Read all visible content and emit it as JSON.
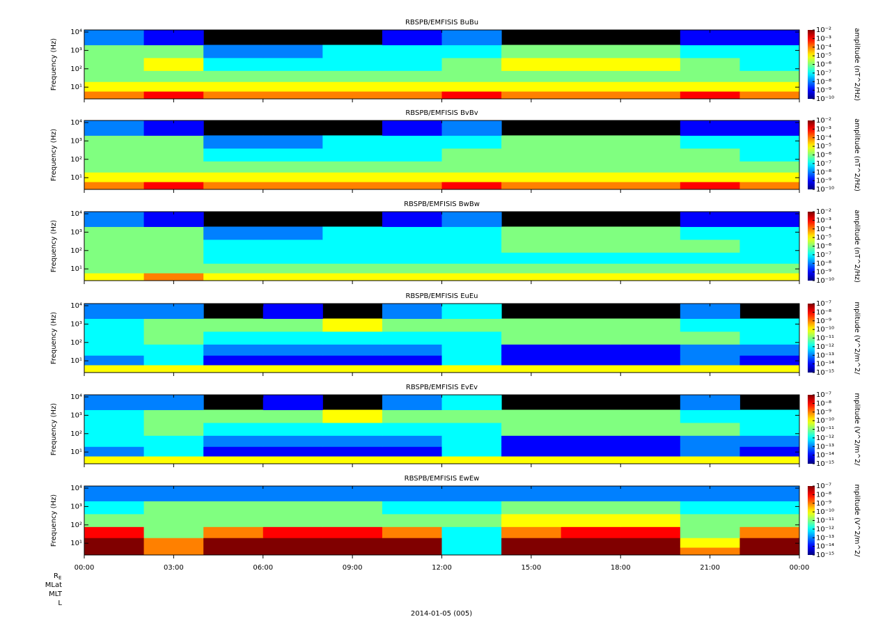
{
  "chart_data": [
    {
      "type": "spectrogram",
      "title": "RBSPB/EMFISIS  BuBu",
      "ylabel": "Frequency (Hz)",
      "ylog": true,
      "ylim": [
        2.3,
        13000
      ],
      "yticks": [
        {
          "value": 10,
          "label": "10¹"
        },
        {
          "value": 100,
          "label": "10²"
        },
        {
          "value": 1000,
          "label": "10³"
        },
        {
          "value": 10000,
          "label": "10⁴"
        }
      ],
      "xlim": [
        0,
        24
      ],
      "x": [
        0,
        2,
        4,
        6,
        8,
        10,
        12,
        14,
        16,
        18,
        20,
        22,
        24
      ],
      "y": [
        2.3,
        6,
        20,
        80,
        400,
        2000,
        13000
      ],
      "values": [
        [
          0.0001,
          0.001,
          0.0001,
          0.0001,
          0.0001,
          0.0001,
          0.001,
          0.0001,
          0.0001,
          0.0001,
          0.001,
          0.0001
        ],
        [
          1e-05,
          1e-05,
          1e-05,
          1e-05,
          1e-05,
          1e-05,
          1e-05,
          1e-05,
          1e-05,
          1e-05,
          1e-05,
          1e-05
        ],
        [
          1e-06,
          1e-06,
          1e-06,
          1e-06,
          1e-06,
          1e-06,
          1e-06,
          1e-06,
          1e-06,
          1e-06,
          1e-06,
          1e-06
        ],
        [
          1e-06,
          1e-05,
          1e-07,
          1e-07,
          1e-07,
          1e-07,
          1e-06,
          1e-05,
          1e-05,
          1e-05,
          1e-06,
          1e-07
        ],
        [
          1e-06,
          1e-06,
          1e-08,
          1e-08,
          1e-07,
          1e-07,
          1e-07,
          1e-06,
          1e-06,
          1e-06,
          1e-07,
          1e-07
        ],
        [
          1e-08,
          1e-09,
          null,
          null,
          null,
          1e-09,
          1e-08,
          null,
          null,
          null,
          1e-09,
          1e-09
        ]
      ],
      "clim": [
        1e-10,
        0.01
      ],
      "clabel": "amplitude (nT^2/Hz)",
      "cticks": [
        {
          "value": 0.01,
          "label": "10⁻²"
        },
        {
          "value": 0.001,
          "label": "10⁻³"
        },
        {
          "value": 0.0001,
          "label": "10⁻⁴"
        },
        {
          "value": 1e-05,
          "label": "10⁻⁵"
        },
        {
          "value": 1e-06,
          "label": "10⁻⁶"
        },
        {
          "value": 1e-07,
          "label": "10⁻⁷"
        },
        {
          "value": 1e-08,
          "label": "10⁻⁸"
        },
        {
          "value": 1e-09,
          "label": "10⁻⁹"
        },
        {
          "value": 1e-10,
          "label": "10⁻¹⁰"
        }
      ]
    },
    {
      "type": "spectrogram",
      "title": "RBSPB/EMFISIS  BvBv",
      "ylabel": "Frequency (Hz)",
      "ylog": true,
      "ylim": [
        2.3,
        13000
      ],
      "yticks": [
        {
          "value": 10,
          "label": "10¹"
        },
        {
          "value": 100,
          "label": "10²"
        },
        {
          "value": 1000,
          "label": "10³"
        },
        {
          "value": 10000,
          "label": "10⁴"
        }
      ],
      "xlim": [
        0,
        24
      ],
      "x": [
        0,
        2,
        4,
        6,
        8,
        10,
        12,
        14,
        16,
        18,
        20,
        22,
        24
      ],
      "y": [
        2.3,
        6,
        20,
        80,
        400,
        2000,
        13000
      ],
      "values": [
        [
          0.0001,
          0.001,
          0.0001,
          0.0001,
          0.0001,
          0.0001,
          0.001,
          0.0001,
          0.0001,
          0.0001,
          0.001,
          0.0001
        ],
        [
          1e-05,
          1e-05,
          1e-05,
          1e-05,
          1e-05,
          1e-05,
          1e-05,
          1e-05,
          1e-05,
          1e-05,
          1e-05,
          1e-05
        ],
        [
          1e-06,
          1e-06,
          1e-06,
          1e-06,
          1e-06,
          1e-06,
          1e-06,
          1e-06,
          1e-06,
          1e-06,
          1e-06,
          1e-06
        ],
        [
          1e-06,
          1e-06,
          1e-07,
          1e-07,
          1e-07,
          1e-07,
          1e-06,
          1e-06,
          1e-06,
          1e-06,
          1e-06,
          1e-07
        ],
        [
          1e-06,
          1e-06,
          1e-08,
          1e-08,
          1e-07,
          1e-07,
          1e-07,
          1e-06,
          1e-06,
          1e-06,
          1e-07,
          1e-07
        ],
        [
          1e-08,
          1e-09,
          null,
          null,
          null,
          1e-09,
          1e-08,
          null,
          null,
          null,
          1e-09,
          1e-09
        ]
      ],
      "clim": [
        1e-10,
        0.01
      ],
      "clabel": "amplitude (nT^2/Hz)",
      "cticks": [
        {
          "value": 0.01,
          "label": "10⁻²"
        },
        {
          "value": 0.001,
          "label": "10⁻³"
        },
        {
          "value": 0.0001,
          "label": "10⁻⁴"
        },
        {
          "value": 1e-05,
          "label": "10⁻⁵"
        },
        {
          "value": 1e-06,
          "label": "10⁻⁶"
        },
        {
          "value": 1e-07,
          "label": "10⁻⁷"
        },
        {
          "value": 1e-08,
          "label": "10⁻⁸"
        },
        {
          "value": 1e-09,
          "label": "10⁻⁹"
        },
        {
          "value": 1e-10,
          "label": "10⁻¹⁰"
        }
      ]
    },
    {
      "type": "spectrogram",
      "title": "RBSPB/EMFISIS  BwBw",
      "ylabel": "Frequency (Hz)",
      "ylog": true,
      "ylim": [
        2.3,
        13000
      ],
      "yticks": [
        {
          "value": 10,
          "label": "10¹"
        },
        {
          "value": 100,
          "label": "10²"
        },
        {
          "value": 1000,
          "label": "10³"
        },
        {
          "value": 10000,
          "label": "10⁴"
        }
      ],
      "xlim": [
        0,
        24
      ],
      "x": [
        0,
        2,
        4,
        6,
        8,
        10,
        12,
        14,
        16,
        18,
        20,
        22,
        24
      ],
      "y": [
        2.3,
        6,
        20,
        80,
        400,
        2000,
        13000
      ],
      "values": [
        [
          1e-05,
          0.0001,
          1e-05,
          1e-05,
          1e-05,
          1e-05,
          1e-05,
          1e-05,
          1e-05,
          1e-05,
          1e-05,
          1e-05
        ],
        [
          1e-06,
          1e-06,
          1e-06,
          1e-06,
          1e-06,
          1e-06,
          1e-06,
          1e-06,
          1e-06,
          1e-06,
          1e-06,
          1e-06
        ],
        [
          1e-06,
          1e-06,
          1e-07,
          1e-07,
          1e-07,
          1e-07,
          1e-07,
          1e-07,
          1e-07,
          1e-07,
          1e-07,
          1e-07
        ],
        [
          1e-06,
          1e-06,
          1e-07,
          1e-07,
          1e-07,
          1e-07,
          1e-07,
          1e-06,
          1e-06,
          1e-06,
          1e-06,
          1e-07
        ],
        [
          1e-06,
          1e-06,
          1e-08,
          1e-08,
          1e-07,
          1e-07,
          1e-07,
          1e-06,
          1e-06,
          1e-06,
          1e-07,
          1e-07
        ],
        [
          1e-08,
          1e-09,
          null,
          null,
          null,
          1e-09,
          1e-08,
          null,
          null,
          null,
          1e-09,
          1e-09
        ]
      ],
      "clim": [
        1e-10,
        0.01
      ],
      "clabel": "amplitude (nT^2/Hz)",
      "cticks": [
        {
          "value": 0.01,
          "label": "10⁻²"
        },
        {
          "value": 0.001,
          "label": "10⁻³"
        },
        {
          "value": 0.0001,
          "label": "10⁻⁴"
        },
        {
          "value": 1e-05,
          "label": "10⁻⁵"
        },
        {
          "value": 1e-06,
          "label": "10⁻⁶"
        },
        {
          "value": 1e-07,
          "label": "10⁻⁷"
        },
        {
          "value": 1e-08,
          "label": "10⁻⁸"
        },
        {
          "value": 1e-09,
          "label": "10⁻⁹"
        },
        {
          "value": 1e-10,
          "label": "10⁻¹⁰"
        }
      ]
    },
    {
      "type": "spectrogram",
      "title": "RBSPB/EMFISIS  EuEu",
      "ylabel": "Frequency (Hz)",
      "ylog": true,
      "ylim": [
        2.3,
        13000
      ],
      "yticks": [
        {
          "value": 10,
          "label": "10¹"
        },
        {
          "value": 100,
          "label": "10²"
        },
        {
          "value": 1000,
          "label": "10³"
        },
        {
          "value": 10000,
          "label": "10⁴"
        }
      ],
      "xlim": [
        0,
        24
      ],
      "x": [
        0,
        2,
        4,
        6,
        8,
        10,
        12,
        14,
        16,
        18,
        20,
        22,
        24
      ],
      "y": [
        2.3,
        6,
        20,
        80,
        400,
        2000,
        13000
      ],
      "values": [
        [
          1e-10,
          1e-10,
          1e-10,
          1e-10,
          1e-10,
          1e-10,
          1e-10,
          1e-10,
          1e-10,
          1e-10,
          1e-10,
          1e-10
        ],
        [
          1e-13,
          1e-12,
          1e-14,
          1e-14,
          1e-14,
          1e-14,
          1e-12,
          1e-14,
          1e-14,
          1e-14,
          1e-13,
          1e-14
        ],
        [
          1e-12,
          1e-12,
          1e-13,
          1e-13,
          1e-13,
          1e-13,
          1e-12,
          1e-14,
          1e-14,
          1e-14,
          1e-13,
          1e-13
        ],
        [
          1e-12,
          1e-11,
          1e-12,
          1e-12,
          1e-12,
          1e-12,
          1e-12,
          1e-11,
          1e-11,
          1e-11,
          1e-11,
          1e-12
        ],
        [
          1e-12,
          1e-11,
          1e-11,
          1e-11,
          1e-10,
          1e-11,
          1e-11,
          1e-11,
          1e-11,
          1e-11,
          1e-12,
          1e-12
        ],
        [
          1e-13,
          1e-13,
          null,
          1e-14,
          null,
          1e-13,
          1e-12,
          null,
          null,
          null,
          1e-13,
          null
        ]
      ],
      "clim": [
        1e-15,
        1e-07
      ],
      "clabel": "mplitude (V^2/m^2/",
      "cticks": [
        {
          "value": 1e-07,
          "label": "10⁻⁷"
        },
        {
          "value": 1e-08,
          "label": "10⁻⁸"
        },
        {
          "value": 1e-09,
          "label": "10⁻⁹"
        },
        {
          "value": 1e-10,
          "label": "10⁻¹⁰"
        },
        {
          "value": 1e-11,
          "label": "10⁻¹¹"
        },
        {
          "value": 1e-12,
          "label": "10⁻¹²"
        },
        {
          "value": 1e-13,
          "label": "10⁻¹³"
        },
        {
          "value": 1e-14,
          "label": "10⁻¹⁴"
        },
        {
          "value": 1e-15,
          "label": "10⁻¹⁵"
        }
      ]
    },
    {
      "type": "spectrogram",
      "title": "RBSPB/EMFISIS  EvEv",
      "ylabel": "Frequency (Hz)",
      "ylog": true,
      "ylim": [
        2.3,
        13000
      ],
      "yticks": [
        {
          "value": 10,
          "label": "10¹"
        },
        {
          "value": 100,
          "label": "10²"
        },
        {
          "value": 1000,
          "label": "10³"
        },
        {
          "value": 10000,
          "label": "10⁴"
        }
      ],
      "xlim": [
        0,
        24
      ],
      "x": [
        0,
        2,
        4,
        6,
        8,
        10,
        12,
        14,
        16,
        18,
        20,
        22,
        24
      ],
      "y": [
        2.3,
        6,
        20,
        80,
        400,
        2000,
        13000
      ],
      "values": [
        [
          1e-10,
          1e-10,
          1e-10,
          1e-10,
          1e-10,
          1e-10,
          1e-10,
          1e-10,
          1e-10,
          1e-10,
          1e-10,
          1e-10
        ],
        [
          1e-13,
          1e-12,
          1e-14,
          1e-14,
          1e-14,
          1e-14,
          1e-12,
          1e-14,
          1e-14,
          1e-14,
          1e-13,
          1e-14
        ],
        [
          1e-12,
          1e-12,
          1e-13,
          1e-13,
          1e-13,
          1e-13,
          1e-12,
          1e-14,
          1e-14,
          1e-14,
          1e-13,
          1e-13
        ],
        [
          1e-12,
          1e-11,
          1e-12,
          1e-12,
          1e-12,
          1e-12,
          1e-12,
          1e-11,
          1e-11,
          1e-11,
          1e-11,
          1e-12
        ],
        [
          1e-12,
          1e-11,
          1e-11,
          1e-11,
          1e-10,
          1e-11,
          1e-11,
          1e-11,
          1e-11,
          1e-11,
          1e-12,
          1e-12
        ],
        [
          1e-13,
          1e-13,
          null,
          1e-14,
          null,
          1e-13,
          1e-12,
          null,
          null,
          null,
          1e-13,
          null
        ]
      ],
      "clim": [
        1e-15,
        1e-07
      ],
      "clabel": "mplitude (V^2/m^2/",
      "cticks": [
        {
          "value": 1e-07,
          "label": "10⁻⁷"
        },
        {
          "value": 1e-08,
          "label": "10⁻⁸"
        },
        {
          "value": 1e-09,
          "label": "10⁻⁹"
        },
        {
          "value": 1e-10,
          "label": "10⁻¹⁰"
        },
        {
          "value": 1e-11,
          "label": "10⁻¹¹"
        },
        {
          "value": 1e-12,
          "label": "10⁻¹²"
        },
        {
          "value": 1e-13,
          "label": "10⁻¹³"
        },
        {
          "value": 1e-14,
          "label": "10⁻¹⁴"
        },
        {
          "value": 1e-15,
          "label": "10⁻¹⁵"
        }
      ]
    },
    {
      "type": "spectrogram",
      "title": "RBSPB/EMFISIS  EwEw",
      "ylabel": "Frequency (Hz)",
      "ylog": true,
      "ylim": [
        2.3,
        13000
      ],
      "yticks": [
        {
          "value": 10,
          "label": "10¹"
        },
        {
          "value": 100,
          "label": "10²"
        },
        {
          "value": 1000,
          "label": "10³"
        },
        {
          "value": 10000,
          "label": "10⁴"
        }
      ],
      "xlim": [
        0,
        24
      ],
      "x": [
        0,
        2,
        4,
        6,
        8,
        10,
        12,
        14,
        16,
        18,
        20,
        22,
        24
      ],
      "y": [
        2.3,
        6,
        20,
        80,
        400,
        2000,
        13000
      ],
      "xticks": [
        {
          "value": 0,
          "label": "00:00"
        },
        {
          "value": 3,
          "label": "03:00"
        },
        {
          "value": 6,
          "label": "06:00"
        },
        {
          "value": 9,
          "label": "09:00"
        },
        {
          "value": 12,
          "label": "12:00"
        },
        {
          "value": 15,
          "label": "15:00"
        },
        {
          "value": 18,
          "label": "18:00"
        },
        {
          "value": 21,
          "label": "21:00"
        },
        {
          "value": 24,
          "label": "00:00"
        }
      ],
      "values": [
        [
          1e-07,
          1e-09,
          1e-07,
          1e-07,
          1e-07,
          1e-07,
          1e-12,
          1e-07,
          1e-07,
          1e-07,
          1e-09,
          1e-07
        ],
        [
          1e-07,
          1e-09,
          1e-07,
          1e-07,
          1e-07,
          1e-07,
          1e-12,
          1e-07,
          1e-07,
          1e-07,
          1e-10,
          1e-07
        ],
        [
          1e-08,
          1e-11,
          1e-09,
          1e-08,
          1e-08,
          1e-09,
          1e-12,
          1e-09,
          1e-08,
          1e-08,
          1e-11,
          1e-09
        ],
        [
          1e-11,
          1e-11,
          1e-11,
          1e-11,
          1e-11,
          1e-11,
          1e-11,
          1e-10,
          1e-10,
          1e-10,
          1e-11,
          1e-11
        ],
        [
          1e-12,
          1e-11,
          1e-11,
          1e-11,
          1e-11,
          1e-12,
          1e-12,
          1e-11,
          1e-11,
          1e-11,
          1e-12,
          1e-12
        ],
        [
          1e-13,
          1e-13,
          1e-13,
          1e-13,
          1e-13,
          1e-13,
          1e-13,
          1e-13,
          1e-13,
          1e-13,
          1e-13,
          1e-13
        ]
      ],
      "clim": [
        1e-15,
        1e-07
      ],
      "clabel": "mplitude (V^2/m^2/",
      "cticks": [
        {
          "value": 1e-07,
          "label": "10⁻⁷"
        },
        {
          "value": 1e-08,
          "label": "10⁻⁸"
        },
        {
          "value": 1e-09,
          "label": "10⁻⁹"
        },
        {
          "value": 1e-10,
          "label": "10⁻¹⁰"
        },
        {
          "value": 1e-11,
          "label": "10⁻¹¹"
        },
        {
          "value": 1e-12,
          "label": "10⁻¹²"
        },
        {
          "value": 1e-13,
          "label": "10⁻¹³"
        },
        {
          "value": 1e-14,
          "label": "10⁻¹⁴"
        },
        {
          "value": 1e-15,
          "label": "10⁻¹⁵"
        }
      ]
    }
  ],
  "footer": {
    "ephemeris": [
      "R",
      "MLat",
      "MLT",
      "L"
    ],
    "ephemeris_subscript": "E",
    "date": "2014-01-05 (005)"
  }
}
